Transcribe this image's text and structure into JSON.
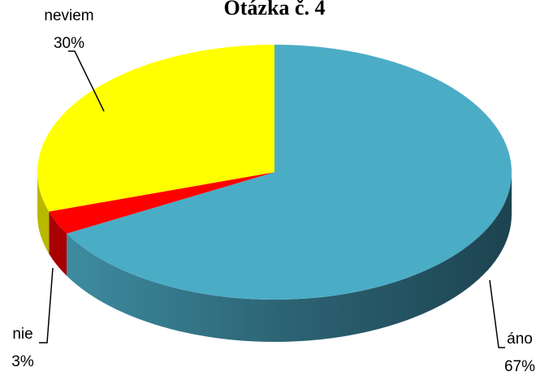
{
  "chart_data": {
    "type": "pie3d",
    "title": "Otázka č. 4",
    "categories": [
      "áno",
      "nie",
      "neviem"
    ],
    "values": [
      67,
      3,
      30
    ],
    "value_labels": [
      "67%",
      "3%",
      "30%"
    ],
    "colors": [
      "#4bacc6",
      "#ff0000",
      "#ffff00"
    ]
  }
}
